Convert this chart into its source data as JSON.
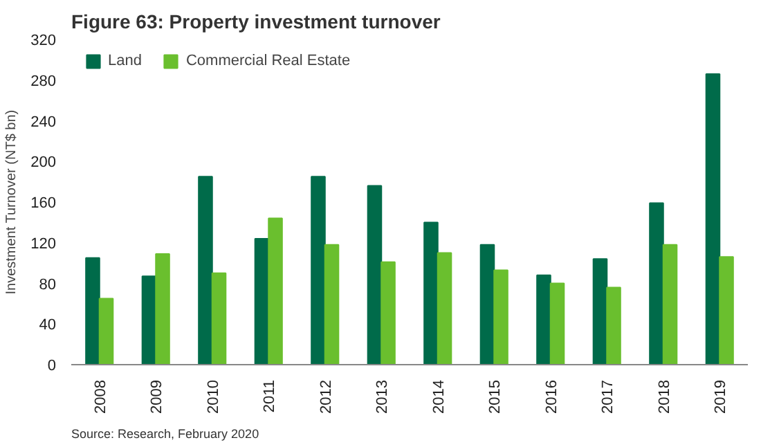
{
  "chart_data": {
    "type": "bar",
    "title": "Figure 63: Property investment turnover",
    "ylabel": "Investment Turnover (NT$ bn)",
    "categories": [
      "2008",
      "2009",
      "2010",
      "2011",
      "2012",
      "2013",
      "2014",
      "2015",
      "2016",
      "2017",
      "2018",
      "2019"
    ],
    "series": [
      {
        "name": "Land",
        "color": "#006b4a",
        "values": [
          105,
          87,
          185,
          124,
          185,
          176,
          140,
          118,
          88,
          104,
          159,
          286
        ]
      },
      {
        "name": "Commercial Real Estate",
        "color": "#6abf2e",
        "values": [
          65,
          109,
          90,
          144,
          118,
          101,
          110,
          93,
          80,
          76,
          118,
          106
        ]
      }
    ],
    "ylim": [
      0,
      320
    ],
    "yticks": [
      0,
      40,
      80,
      120,
      160,
      200,
      240,
      280,
      320
    ],
    "grid": false,
    "legend": "top left",
    "annotations": [
      "Source: Research, February 2020"
    ]
  }
}
